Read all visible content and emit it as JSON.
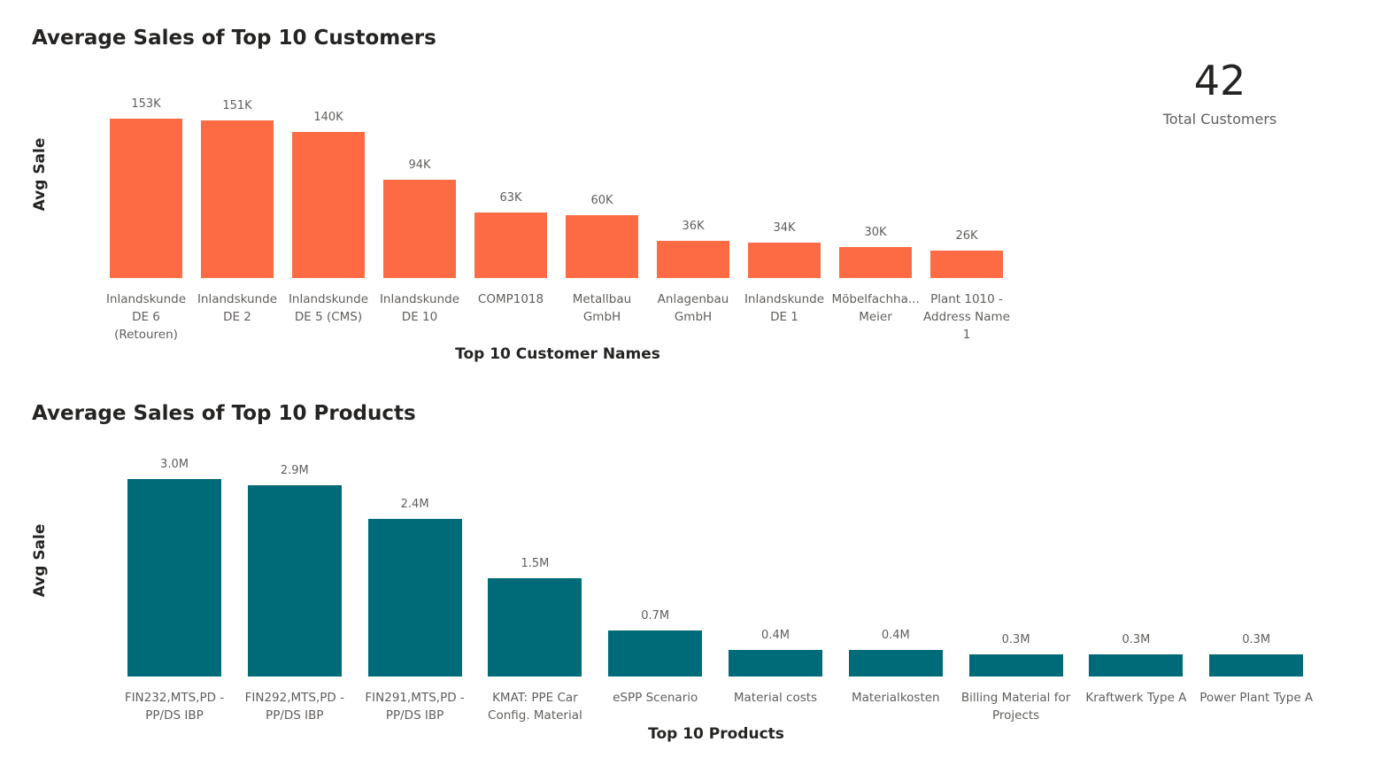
{
  "chart_data": [
    {
      "type": "bar",
      "title": "Average Sales of Top 10 Customers",
      "x_label": "Top 10 Customer Names",
      "y_label": "Avg Sale",
      "color": "#fd6b45",
      "categories": [
        "Inlandskunde DE 6 (Retouren)",
        "Inlandskunde DE 2",
        "Inlandskunde DE 5 (CMS)",
        "Inlandskunde DE 10",
        "COMP1018",
        "Metallbau GmbH",
        "Anlagenbau GmbH",
        "Inlandskunde DE 1",
        "Möbelfachha... Meier",
        "Plant 1010 - Address Name 1"
      ],
      "values": [
        153000,
        151000,
        140000,
        94000,
        63000,
        60000,
        36000,
        34000,
        30000,
        26000
      ],
      "value_labels": [
        "153K",
        "151K",
        "140K",
        "94K",
        "63K",
        "60K",
        "36K",
        "34K",
        "30K",
        "26K"
      ]
    },
    {
      "type": "bar",
      "title": "Average Sales of Top 10 Products",
      "x_label": "Top 10 Products",
      "y_label": "Avg Sale",
      "color": "#006b78",
      "categories": [
        "FIN232,MTS,PD - PP/DS IBP",
        "FIN292,MTS,PD - PP/DS IBP",
        "FIN291,MTS,PD - PP/DS IBP",
        "KMAT: PPE Car Config. Material",
        "eSPP Scenario",
        "Material costs",
        "Materialkosten",
        "Billing Material for Projects",
        "Kraftwerk Type A",
        "Power Plant Type A"
      ],
      "values": [
        3000000,
        2900000,
        2400000,
        1500000,
        700000,
        400000,
        400000,
        330000,
        330000,
        330000
      ],
      "value_labels": [
        "3.0M",
        "2.9M",
        "2.4M",
        "1.5M",
        "0.7M",
        "0.4M",
        "0.4M",
        "0.3M",
        "0.3M",
        "0.3M"
      ]
    }
  ],
  "kpi": {
    "value": 42,
    "label": "Total Customers"
  }
}
